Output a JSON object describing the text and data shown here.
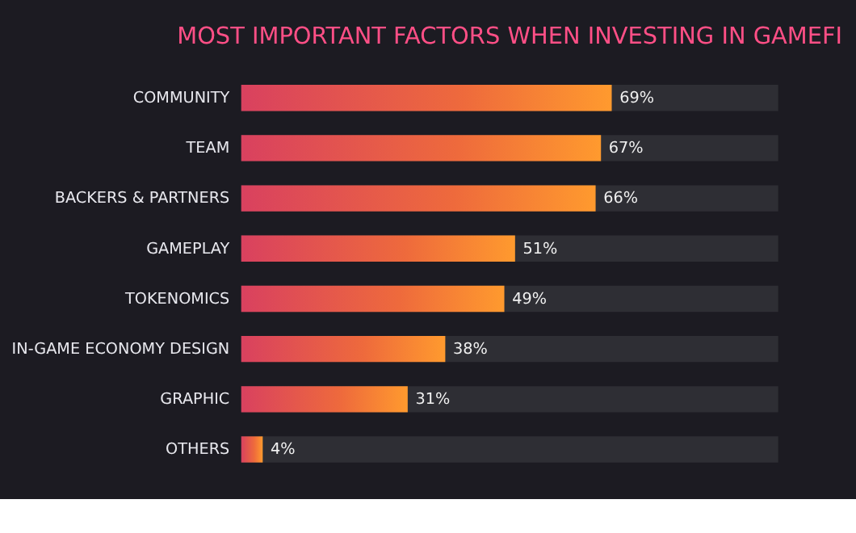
{
  "chart_data": {
    "type": "bar",
    "orientation": "horizontal",
    "title": "MOST IMPORTANT FACTORS WHEN INVESTING IN GAMEFI",
    "categories": [
      "COMMUNITY",
      "TEAM",
      "BACKERS & PARTNERS",
      "GAMEPLAY",
      "TOKENOMICS",
      "IN-GAME ECONOMY DESIGN",
      "GRAPHIC",
      "OTHERS"
    ],
    "values": [
      69,
      67,
      66,
      51,
      49,
      38,
      31,
      4
    ],
    "value_labels": [
      "69%",
      "67%",
      "66%",
      "51%",
      "49%",
      "38%",
      "31%",
      "4%"
    ],
    "color": "#ee6a3c",
    "xlim": [
      0,
      100
    ],
    "tick_labels": "y",
    "grid": false
  }
}
